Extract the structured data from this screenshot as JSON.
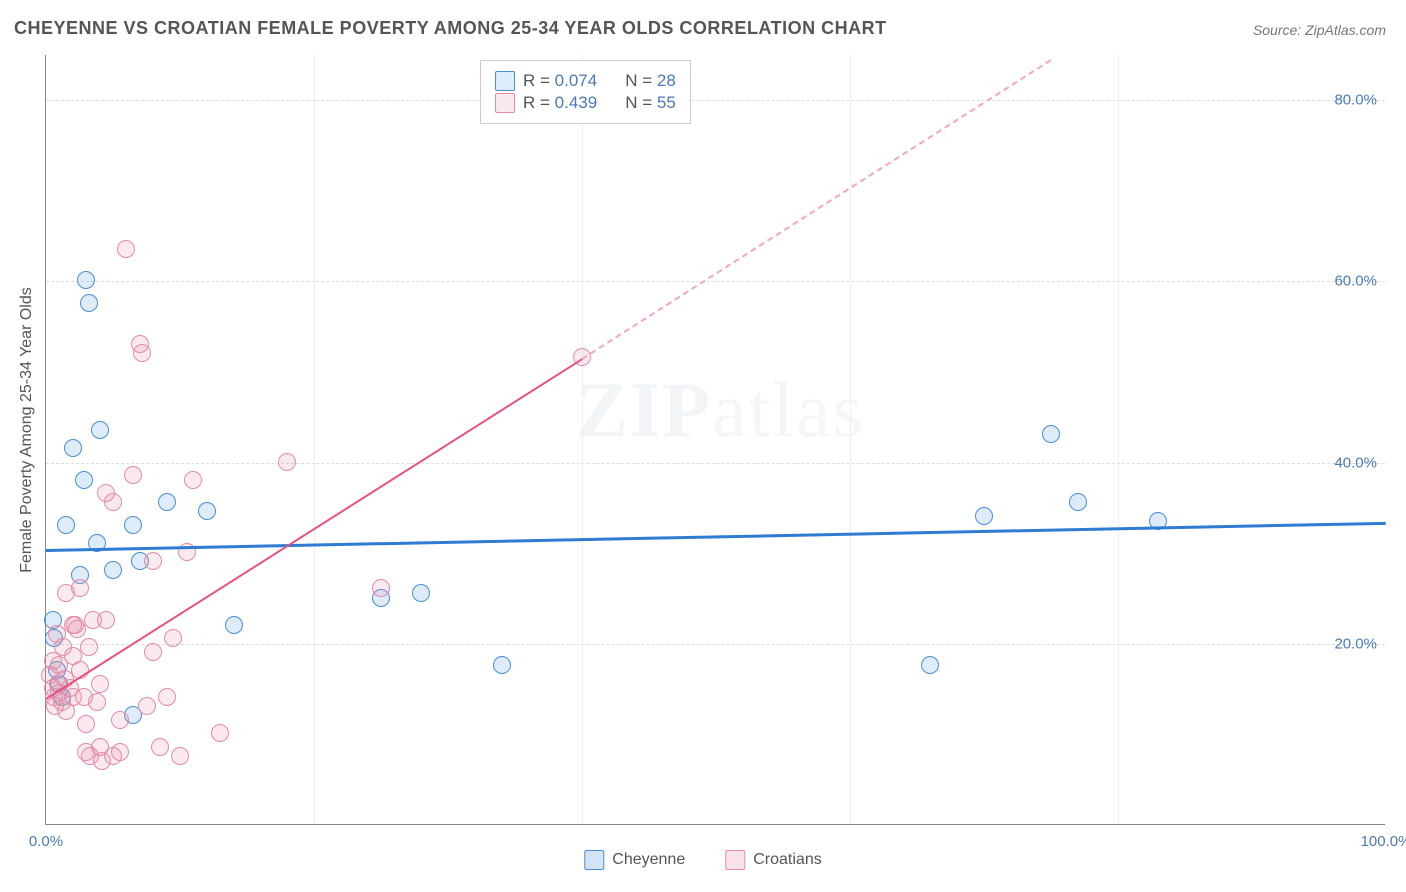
{
  "title": "CHEYENNE VS CROATIAN FEMALE POVERTY AMONG 25-34 YEAR OLDS CORRELATION CHART",
  "source": "Source: ZipAtlas.com",
  "watermark": {
    "bold": "ZIP",
    "thin": "atlas"
  },
  "y_axis_title": "Female Poverty Among 25-34 Year Olds",
  "chart": {
    "type": "scatter",
    "xlim": [
      0,
      100
    ],
    "ylim": [
      0,
      85
    ],
    "x_ticks": [
      {
        "v": 0,
        "label": "0.0%"
      },
      {
        "v": 100,
        "label": "100.0%"
      }
    ],
    "y_ticks": [
      {
        "v": 20,
        "label": "20.0%"
      },
      {
        "v": 40,
        "label": "40.0%"
      },
      {
        "v": 60,
        "label": "60.0%"
      },
      {
        "v": 80,
        "label": "80.0%"
      }
    ],
    "x_grid": [
      20,
      40,
      60,
      80
    ],
    "background_color": "#ffffff",
    "grid_color_h": "#dddddd",
    "grid_color_v": "#eeeeee",
    "marker_radius": 9,
    "marker_stroke_width": 1.5,
    "marker_fill_opacity": 0.15
  },
  "series": [
    {
      "name": "Cheyenne",
      "color": "#4a8fd6",
      "fill": "rgba(74,143,214,0.18)",
      "stroke": "#4a8fd6",
      "r_label": "R = ",
      "r_value": "0.074",
      "n_label": "N = ",
      "n_value": "28",
      "trend": {
        "x1": 0,
        "y1": 30.5,
        "x2": 100,
        "y2": 33.5,
        "color": "#2e7cd1",
        "width": 2.5,
        "dashed": false
      },
      "points": [
        [
          0.5,
          22.5
        ],
        [
          0.6,
          20.5
        ],
        [
          0.8,
          17.0
        ],
        [
          1.0,
          15.5
        ],
        [
          1.2,
          14.0
        ],
        [
          1.5,
          33.0
        ],
        [
          2.0,
          41.5
        ],
        [
          2.5,
          27.5
        ],
        [
          2.8,
          38.0
        ],
        [
          3.0,
          60.0
        ],
        [
          3.2,
          57.5
        ],
        [
          3.8,
          31.0
        ],
        [
          4.0,
          43.5
        ],
        [
          5.0,
          28.0
        ],
        [
          6.5,
          12.0
        ],
        [
          6.5,
          33.0
        ],
        [
          7.0,
          29.0
        ],
        [
          9.0,
          35.5
        ],
        [
          12.0,
          34.5
        ],
        [
          14.0,
          22.0
        ],
        [
          25.0,
          25.0
        ],
        [
          28.0,
          25.5
        ],
        [
          34.0,
          17.5
        ],
        [
          66.0,
          17.5
        ],
        [
          70.0,
          34.0
        ],
        [
          75.0,
          43.0
        ],
        [
          77.0,
          35.5
        ],
        [
          83.0,
          33.5
        ]
      ]
    },
    {
      "name": "Croatians",
      "color": "#e68aa6",
      "fill": "rgba(230,138,166,0.18)",
      "stroke": "#e68aa6",
      "r_label": "R = ",
      "r_value": "0.439",
      "n_label": "N = ",
      "n_value": "55",
      "trend": {
        "x1": 0,
        "y1": 14.0,
        "x2": 40,
        "y2": 51.5,
        "color": "#e6537f",
        "width": 2.2,
        "dashed": false
      },
      "trend_ext": {
        "x1": 40,
        "y1": 51.5,
        "x2": 75,
        "y2": 84.5,
        "color": "#f2a9be",
        "dashed": true
      },
      "points": [
        [
          0.3,
          16.5
        ],
        [
          0.5,
          15.0
        ],
        [
          0.5,
          18.0
        ],
        [
          0.6,
          14.0
        ],
        [
          0.7,
          13.0
        ],
        [
          0.8,
          21.0
        ],
        [
          0.9,
          15.5
        ],
        [
          1.0,
          17.5
        ],
        [
          1.0,
          14.5
        ],
        [
          1.2,
          13.5
        ],
        [
          1.3,
          19.5
        ],
        [
          1.4,
          16.0
        ],
        [
          1.5,
          25.5
        ],
        [
          1.5,
          12.5
        ],
        [
          1.8,
          15.0
        ],
        [
          2.0,
          14.0
        ],
        [
          2.0,
          22.0
        ],
        [
          2.0,
          18.5
        ],
        [
          2.2,
          22.0
        ],
        [
          2.3,
          21.5
        ],
        [
          2.5,
          17.0
        ],
        [
          2.5,
          26.0
        ],
        [
          2.8,
          14.0
        ],
        [
          3.0,
          8.0
        ],
        [
          3.0,
          11.0
        ],
        [
          3.2,
          19.5
        ],
        [
          3.3,
          7.5
        ],
        [
          3.5,
          22.5
        ],
        [
          3.8,
          13.5
        ],
        [
          4.0,
          8.5
        ],
        [
          4.0,
          15.5
        ],
        [
          4.2,
          7.0
        ],
        [
          4.5,
          22.5
        ],
        [
          4.5,
          36.5
        ],
        [
          5.0,
          35.5
        ],
        [
          5.0,
          7.5
        ],
        [
          5.5,
          8.0
        ],
        [
          5.5,
          11.5
        ],
        [
          6.0,
          63.5
        ],
        [
          6.5,
          38.5
        ],
        [
          7.0,
          53.0
        ],
        [
          7.2,
          52.0
        ],
        [
          7.5,
          13.0
        ],
        [
          8.0,
          19.0
        ],
        [
          8.0,
          29.0
        ],
        [
          8.5,
          8.5
        ],
        [
          9.0,
          14.0
        ],
        [
          9.5,
          20.5
        ],
        [
          10.0,
          7.5
        ],
        [
          10.5,
          30.0
        ],
        [
          11.0,
          38.0
        ],
        [
          13.0,
          10.0
        ],
        [
          18.0,
          40.0
        ],
        [
          25.0,
          26.0
        ],
        [
          40.0,
          51.5
        ]
      ]
    }
  ],
  "legend_bottom": [
    {
      "label": "Cheyenne",
      "color": "#4a8fd6",
      "fill": "rgba(74,143,214,0.25)"
    },
    {
      "label": "Croatians",
      "color": "#e68aa6",
      "fill": "rgba(230,138,166,0.25)"
    }
  ]
}
